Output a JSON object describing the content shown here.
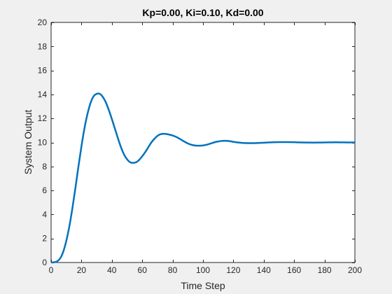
{
  "chart_data": {
    "type": "line",
    "title": "Kp=0.00, Ki=0.10, Kd=0.00",
    "xlabel": "Time Step",
    "ylabel": "System Output",
    "xlim": [
      0,
      200
    ],
    "ylim": [
      0,
      20
    ],
    "xticks": [
      0,
      20,
      40,
      60,
      80,
      100,
      120,
      140,
      160,
      180,
      200
    ],
    "yticks": [
      0,
      2,
      4,
      6,
      8,
      10,
      12,
      14,
      16,
      18,
      20
    ],
    "grid": false,
    "line_color": "#0072bd",
    "series": [
      {
        "x": [
          0,
          2,
          4,
          6,
          8,
          10,
          12,
          14,
          16,
          18,
          20,
          22,
          24,
          26,
          28,
          30,
          32,
          34,
          36,
          38,
          40,
          42,
          44,
          46,
          48,
          50,
          52,
          54,
          56,
          58,
          60,
          62,
          64,
          66,
          68,
          70,
          72,
          74,
          76,
          78,
          80,
          82,
          84,
          86,
          88,
          90,
          92,
          94,
          96,
          98,
          100,
          102,
          104,
          106,
          108,
          110,
          112,
          114,
          116,
          118,
          120,
          125,
          130,
          135,
          140,
          145,
          150,
          155,
          160,
          165,
          170,
          175,
          180,
          185,
          190,
          195,
          200
        ],
        "y": [
          0,
          0.02,
          0.1,
          0.35,
          0.9,
          1.8,
          3.0,
          4.5,
          6.2,
          8.0,
          9.7,
          11.2,
          12.4,
          13.3,
          13.85,
          14.05,
          14.05,
          13.8,
          13.35,
          12.7,
          11.95,
          11.15,
          10.35,
          9.6,
          9.0,
          8.6,
          8.35,
          8.3,
          8.35,
          8.55,
          8.85,
          9.2,
          9.6,
          10.0,
          10.3,
          10.55,
          10.68,
          10.72,
          10.7,
          10.65,
          10.58,
          10.48,
          10.35,
          10.2,
          10.05,
          9.92,
          9.82,
          9.76,
          9.73,
          9.73,
          9.75,
          9.8,
          9.87,
          9.95,
          10.03,
          10.08,
          10.12,
          10.14,
          10.13,
          10.1,
          10.05,
          9.97,
          9.94,
          9.95,
          9.98,
          10.01,
          10.03,
          10.03,
          10.02,
          10.0,
          9.99,
          9.99,
          10.0,
          10.01,
          10.01,
          10.0,
          10.0
        ]
      }
    ]
  }
}
